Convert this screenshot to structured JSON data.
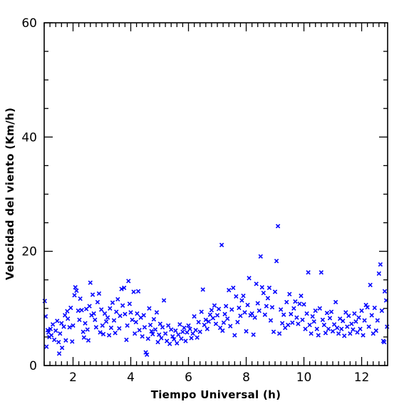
{
  "chart_data": {
    "type": "scatter",
    "xlabel": "Tiempo Universal (h)",
    "ylabel": "Velocidad del viento (Km/h)",
    "xlim": [
      1.0,
      12.9
    ],
    "ylim": [
      0,
      60
    ],
    "x_major_ticks": [
      2,
      4,
      6,
      8,
      10,
      12
    ],
    "y_major_ticks": [
      0,
      20,
      40,
      60
    ],
    "x_minor_step": 0.2,
    "y_minor_step": 5,
    "marker": "x",
    "color": "#0000ff",
    "grid": false,
    "series": [
      {
        "points": [
          [
            1.02,
            11.3
          ],
          [
            1.05,
            8.6
          ],
          [
            1.08,
            3.3
          ],
          [
            1.12,
            6.2
          ],
          [
            1.15,
            5.8
          ],
          [
            1.18,
            5.0
          ],
          [
            1.22,
            6.4
          ],
          [
            1.25,
            5.3
          ],
          [
            1.3,
            7.2
          ],
          [
            1.35,
            4.5
          ],
          [
            1.4,
            6.1
          ],
          [
            1.45,
            7.8
          ],
          [
            1.5,
            4.1
          ],
          [
            1.52,
            2.1
          ],
          [
            1.55,
            5.6
          ],
          [
            1.6,
            7.4
          ],
          [
            1.62,
            3.1
          ],
          [
            1.68,
            6.8
          ],
          [
            1.72,
            8.8
          ],
          [
            1.75,
            4.4
          ],
          [
            1.8,
            9.5
          ],
          [
            1.82,
            8.2
          ],
          [
            1.88,
            6.7
          ],
          [
            1.92,
            10.1
          ],
          [
            1.97,
            4.2
          ],
          [
            2.0,
            7.0
          ],
          [
            2.05,
            12.3
          ],
          [
            2.08,
            13.7
          ],
          [
            2.12,
            13.1
          ],
          [
            2.18,
            9.6
          ],
          [
            2.22,
            8.0
          ],
          [
            2.25,
            11.7
          ],
          [
            2.3,
            9.7
          ],
          [
            2.35,
            5.9
          ],
          [
            2.38,
            4.9
          ],
          [
            2.42,
            7.4
          ],
          [
            2.46,
            9.9
          ],
          [
            2.5,
            6.3
          ],
          [
            2.53,
            4.4
          ],
          [
            2.57,
            10.4
          ],
          [
            2.6,
            14.5
          ],
          [
            2.64,
            8.8
          ],
          [
            2.68,
            12.4
          ],
          [
            2.72,
            9.1
          ],
          [
            2.76,
            8.0
          ],
          [
            2.8,
            6.7
          ],
          [
            2.85,
            11.1
          ],
          [
            2.9,
            12.6
          ],
          [
            2.94,
            5.8
          ],
          [
            2.98,
            9.8
          ],
          [
            3.02,
            7.0
          ],
          [
            3.05,
            5.5
          ],
          [
            3.1,
            9.1
          ],
          [
            3.15,
            7.7
          ],
          [
            3.2,
            8.4
          ],
          [
            3.25,
            5.3
          ],
          [
            3.28,
            10.0
          ],
          [
            3.32,
            6.6
          ],
          [
            3.37,
            11.0
          ],
          [
            3.42,
            7.9
          ],
          [
            3.46,
            5.7
          ],
          [
            3.5,
            9.4
          ],
          [
            3.55,
            11.6
          ],
          [
            3.6,
            6.5
          ],
          [
            3.63,
            8.7
          ],
          [
            3.68,
            13.4
          ],
          [
            3.72,
            10.5
          ],
          [
            3.77,
            13.6
          ],
          [
            3.8,
            9.0
          ],
          [
            3.85,
            4.5
          ],
          [
            3.88,
            7.0
          ],
          [
            3.92,
            14.8
          ],
          [
            3.96,
            10.8
          ],
          [
            4.0,
            9.3
          ],
          [
            4.05,
            8.0
          ],
          [
            4.1,
            12.9
          ],
          [
            4.14,
            5.6
          ],
          [
            4.18,
            7.6
          ],
          [
            4.22,
            9.1
          ],
          [
            4.26,
            13.0
          ],
          [
            4.3,
            6.2
          ],
          [
            4.35,
            8.4
          ],
          [
            4.4,
            5.1
          ],
          [
            4.45,
            8.8
          ],
          [
            4.48,
            6.7
          ],
          [
            4.52,
            2.3
          ],
          [
            4.56,
            1.9
          ],
          [
            4.6,
            4.7
          ],
          [
            4.64,
            10.0
          ],
          [
            4.68,
            7.1
          ],
          [
            4.72,
            6.0
          ],
          [
            4.76,
            5.5
          ],
          [
            4.8,
            8.1
          ],
          [
            4.85,
            6.3
          ],
          [
            4.9,
            9.3
          ],
          [
            4.94,
            4.1
          ],
          [
            4.98,
            5.4
          ],
          [
            5.02,
            7.3
          ],
          [
            5.06,
            4.8
          ],
          [
            5.1,
            6.7
          ],
          [
            5.15,
            11.4
          ],
          [
            5.2,
            5.6
          ],
          [
            5.25,
            4.3
          ],
          [
            5.3,
            7.0
          ],
          [
            5.35,
            3.8
          ],
          [
            5.4,
            6.3
          ],
          [
            5.45,
            5.1
          ],
          [
            5.5,
            4.6
          ],
          [
            5.55,
            6.1
          ],
          [
            5.6,
            3.9
          ],
          [
            5.65,
            5.4
          ],
          [
            5.7,
            7.2
          ],
          [
            5.75,
            4.7
          ],
          [
            5.8,
            5.9
          ],
          [
            5.85,
            6.6
          ],
          [
            5.9,
            4.3
          ],
          [
            5.95,
            5.8
          ],
          [
            6.0,
            7.0
          ],
          [
            6.05,
            6.4
          ],
          [
            6.1,
            4.8
          ],
          [
            6.15,
            5.6
          ],
          [
            6.2,
            8.6
          ],
          [
            6.25,
            6.2
          ],
          [
            6.3,
            4.9
          ],
          [
            6.35,
            7.6
          ],
          [
            6.4,
            5.9
          ],
          [
            6.45,
            9.4
          ],
          [
            6.5,
            13.3
          ],
          [
            6.55,
            7.1
          ],
          [
            6.6,
            8.0
          ],
          [
            6.65,
            6.4
          ],
          [
            6.7,
            7.7
          ],
          [
            6.75,
            8.9
          ],
          [
            6.8,
            9.7
          ],
          [
            6.85,
            8.3
          ],
          [
            6.9,
            10.5
          ],
          [
            6.95,
            7.3
          ],
          [
            7.0,
            8.8
          ],
          [
            7.05,
            9.9
          ],
          [
            7.1,
            6.6
          ],
          [
            7.15,
            21.1
          ],
          [
            7.18,
            6.1
          ],
          [
            7.22,
            7.5
          ],
          [
            7.26,
            9.0
          ],
          [
            7.3,
            10.4
          ],
          [
            7.35,
            8.2
          ],
          [
            7.4,
            13.2
          ],
          [
            7.45,
            6.9
          ],
          [
            7.5,
            9.8
          ],
          [
            7.55,
            13.6
          ],
          [
            7.6,
            5.3
          ],
          [
            7.65,
            12.1
          ],
          [
            7.7,
            7.6
          ],
          [
            7.75,
            10.1
          ],
          [
            7.8,
            8.7
          ],
          [
            7.85,
            11.4
          ],
          [
            7.9,
            12.2
          ],
          [
            7.95,
            9.3
          ],
          [
            8.0,
            6.0
          ],
          [
            8.05,
            10.6
          ],
          [
            8.1,
            15.3
          ],
          [
            8.15,
            8.8
          ],
          [
            8.2,
            9.1
          ],
          [
            8.25,
            5.4
          ],
          [
            8.3,
            8.4
          ],
          [
            8.35,
            14.3
          ],
          [
            8.4,
            10.9
          ],
          [
            8.45,
            9.6
          ],
          [
            8.5,
            19.1
          ],
          [
            8.55,
            13.7
          ],
          [
            8.6,
            12.7
          ],
          [
            8.65,
            8.9
          ],
          [
            8.7,
            10.4
          ],
          [
            8.75,
            11.8
          ],
          [
            8.8,
            13.6
          ],
          [
            8.85,
            7.9
          ],
          [
            8.9,
            10.2
          ],
          [
            8.95,
            5.9
          ],
          [
            9.0,
            12.9
          ],
          [
            9.05,
            18.3
          ],
          [
            9.1,
            24.4
          ],
          [
            9.15,
            5.6
          ],
          [
            9.2,
            9.8
          ],
          [
            9.25,
            7.4
          ],
          [
            9.3,
            8.9
          ],
          [
            9.35,
            6.6
          ],
          [
            9.4,
            11.1
          ],
          [
            9.45,
            7.1
          ],
          [
            9.5,
            12.5
          ],
          [
            9.55,
            9.0
          ],
          [
            9.6,
            7.5
          ],
          [
            9.65,
            10.0
          ],
          [
            9.7,
            11.2
          ],
          [
            9.75,
            8.4
          ],
          [
            9.8,
            7.3
          ],
          [
            9.85,
            10.8
          ],
          [
            9.9,
            12.2
          ],
          [
            9.95,
            8.0
          ],
          [
            10.0,
            10.7
          ],
          [
            10.05,
            6.4
          ],
          [
            10.1,
            9.1
          ],
          [
            10.15,
            16.3
          ],
          [
            10.2,
            7.1
          ],
          [
            10.25,
            5.6
          ],
          [
            10.3,
            8.6
          ],
          [
            10.35,
            7.7
          ],
          [
            10.4,
            9.6
          ],
          [
            10.45,
            6.4
          ],
          [
            10.5,
            5.3
          ],
          [
            10.55,
            10.0
          ],
          [
            10.6,
            16.3
          ],
          [
            10.65,
            8.0
          ],
          [
            10.7,
            7.1
          ],
          [
            10.75,
            5.7
          ],
          [
            10.8,
            9.2
          ],
          [
            10.85,
            6.4
          ],
          [
            10.9,
            8.3
          ],
          [
            10.95,
            9.4
          ],
          [
            11.0,
            6.0
          ],
          [
            11.05,
            7.2
          ],
          [
            11.1,
            11.1
          ],
          [
            11.15,
            6.6
          ],
          [
            11.2,
            5.6
          ],
          [
            11.25,
            8.2
          ],
          [
            11.3,
            6.4
          ],
          [
            11.35,
            7.8
          ],
          [
            11.4,
            5.2
          ],
          [
            11.45,
            9.3
          ],
          [
            11.5,
            6.8
          ],
          [
            11.55,
            8.7
          ],
          [
            11.6,
            5.6
          ],
          [
            11.65,
            7.3
          ],
          [
            11.7,
            6.3
          ],
          [
            11.75,
            9.1
          ],
          [
            11.8,
            7.7
          ],
          [
            11.85,
            5.8
          ],
          [
            11.9,
            8.4
          ],
          [
            11.95,
            6.4
          ],
          [
            12.0,
            9.6
          ],
          [
            12.05,
            5.3
          ],
          [
            12.1,
            7.9
          ],
          [
            12.15,
            10.6
          ],
          [
            12.2,
            10.2
          ],
          [
            12.25,
            6.8
          ],
          [
            12.3,
            14.1
          ],
          [
            12.35,
            8.8
          ],
          [
            12.4,
            5.6
          ],
          [
            12.45,
            10.1
          ],
          [
            12.5,
            6.1
          ],
          [
            12.55,
            7.9
          ],
          [
            12.6,
            16.1
          ],
          [
            12.65,
            17.7
          ],
          [
            12.7,
            9.6
          ],
          [
            12.75,
            4.3
          ],
          [
            12.8,
            13.0
          ],
          [
            12.85,
            11.4
          ],
          [
            12.88,
            6.8
          ],
          [
            12.78,
            4.1
          ]
        ]
      }
    ]
  }
}
